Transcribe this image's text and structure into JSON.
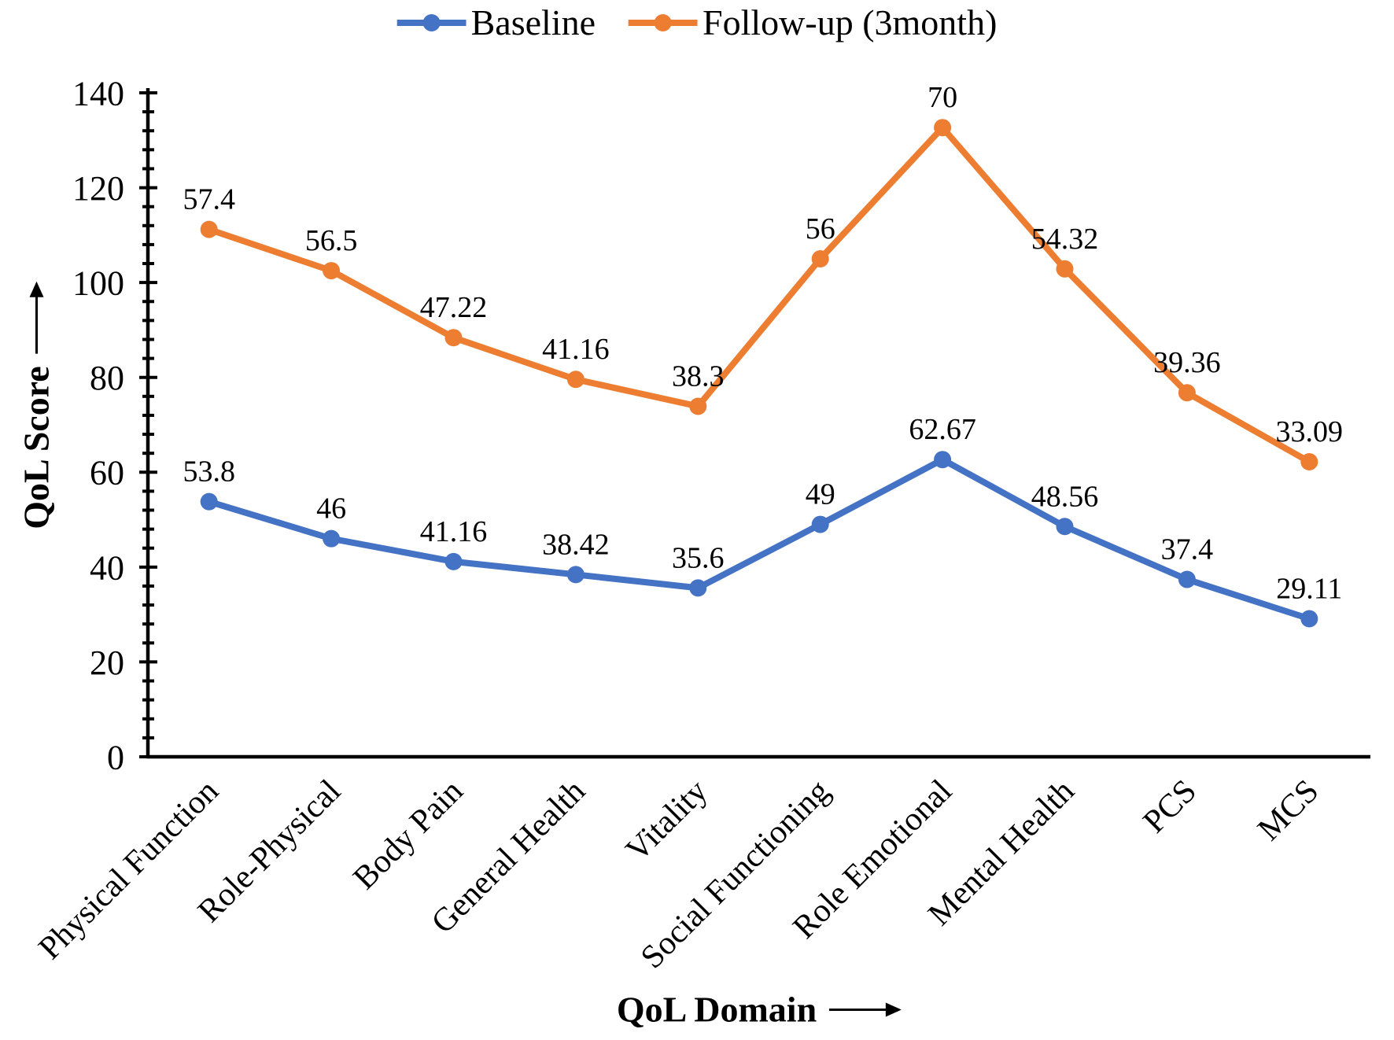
{
  "chart_data": {
    "type": "line",
    "stacking": "stacked",
    "title": "",
    "xlabel": "QoL Domain",
    "ylabel": "QoL Score",
    "categories": [
      "Physical Function",
      "Role-Physical",
      "Body Pain",
      "General Health",
      "Vitality",
      "Social Functioning",
      "Role Emotional",
      "Mental Health",
      "PCS",
      "MCS"
    ],
    "series": [
      {
        "name": "Baseline",
        "color": "#4472C4",
        "values": [
          53.8,
          46,
          41.16,
          38.42,
          35.6,
          49,
          62.67,
          48.56,
          37.4,
          29.11
        ]
      },
      {
        "name": "Follow-up (3month)",
        "color": "#ED7D31",
        "values": [
          57.4,
          56.5,
          47.22,
          41.16,
          38.3,
          56,
          70,
          54.32,
          39.36,
          33.09
        ]
      }
    ],
    "ylim": [
      0,
      140
    ],
    "ytick_major": 20,
    "ytick_minor": 4,
    "ytick_labels": [
      "0",
      "20",
      "40",
      "60",
      "80",
      "100",
      "120",
      "140"
    ],
    "grid": false,
    "legend_position": "top",
    "axis_color": "#000000",
    "text_color": "#000000"
  }
}
